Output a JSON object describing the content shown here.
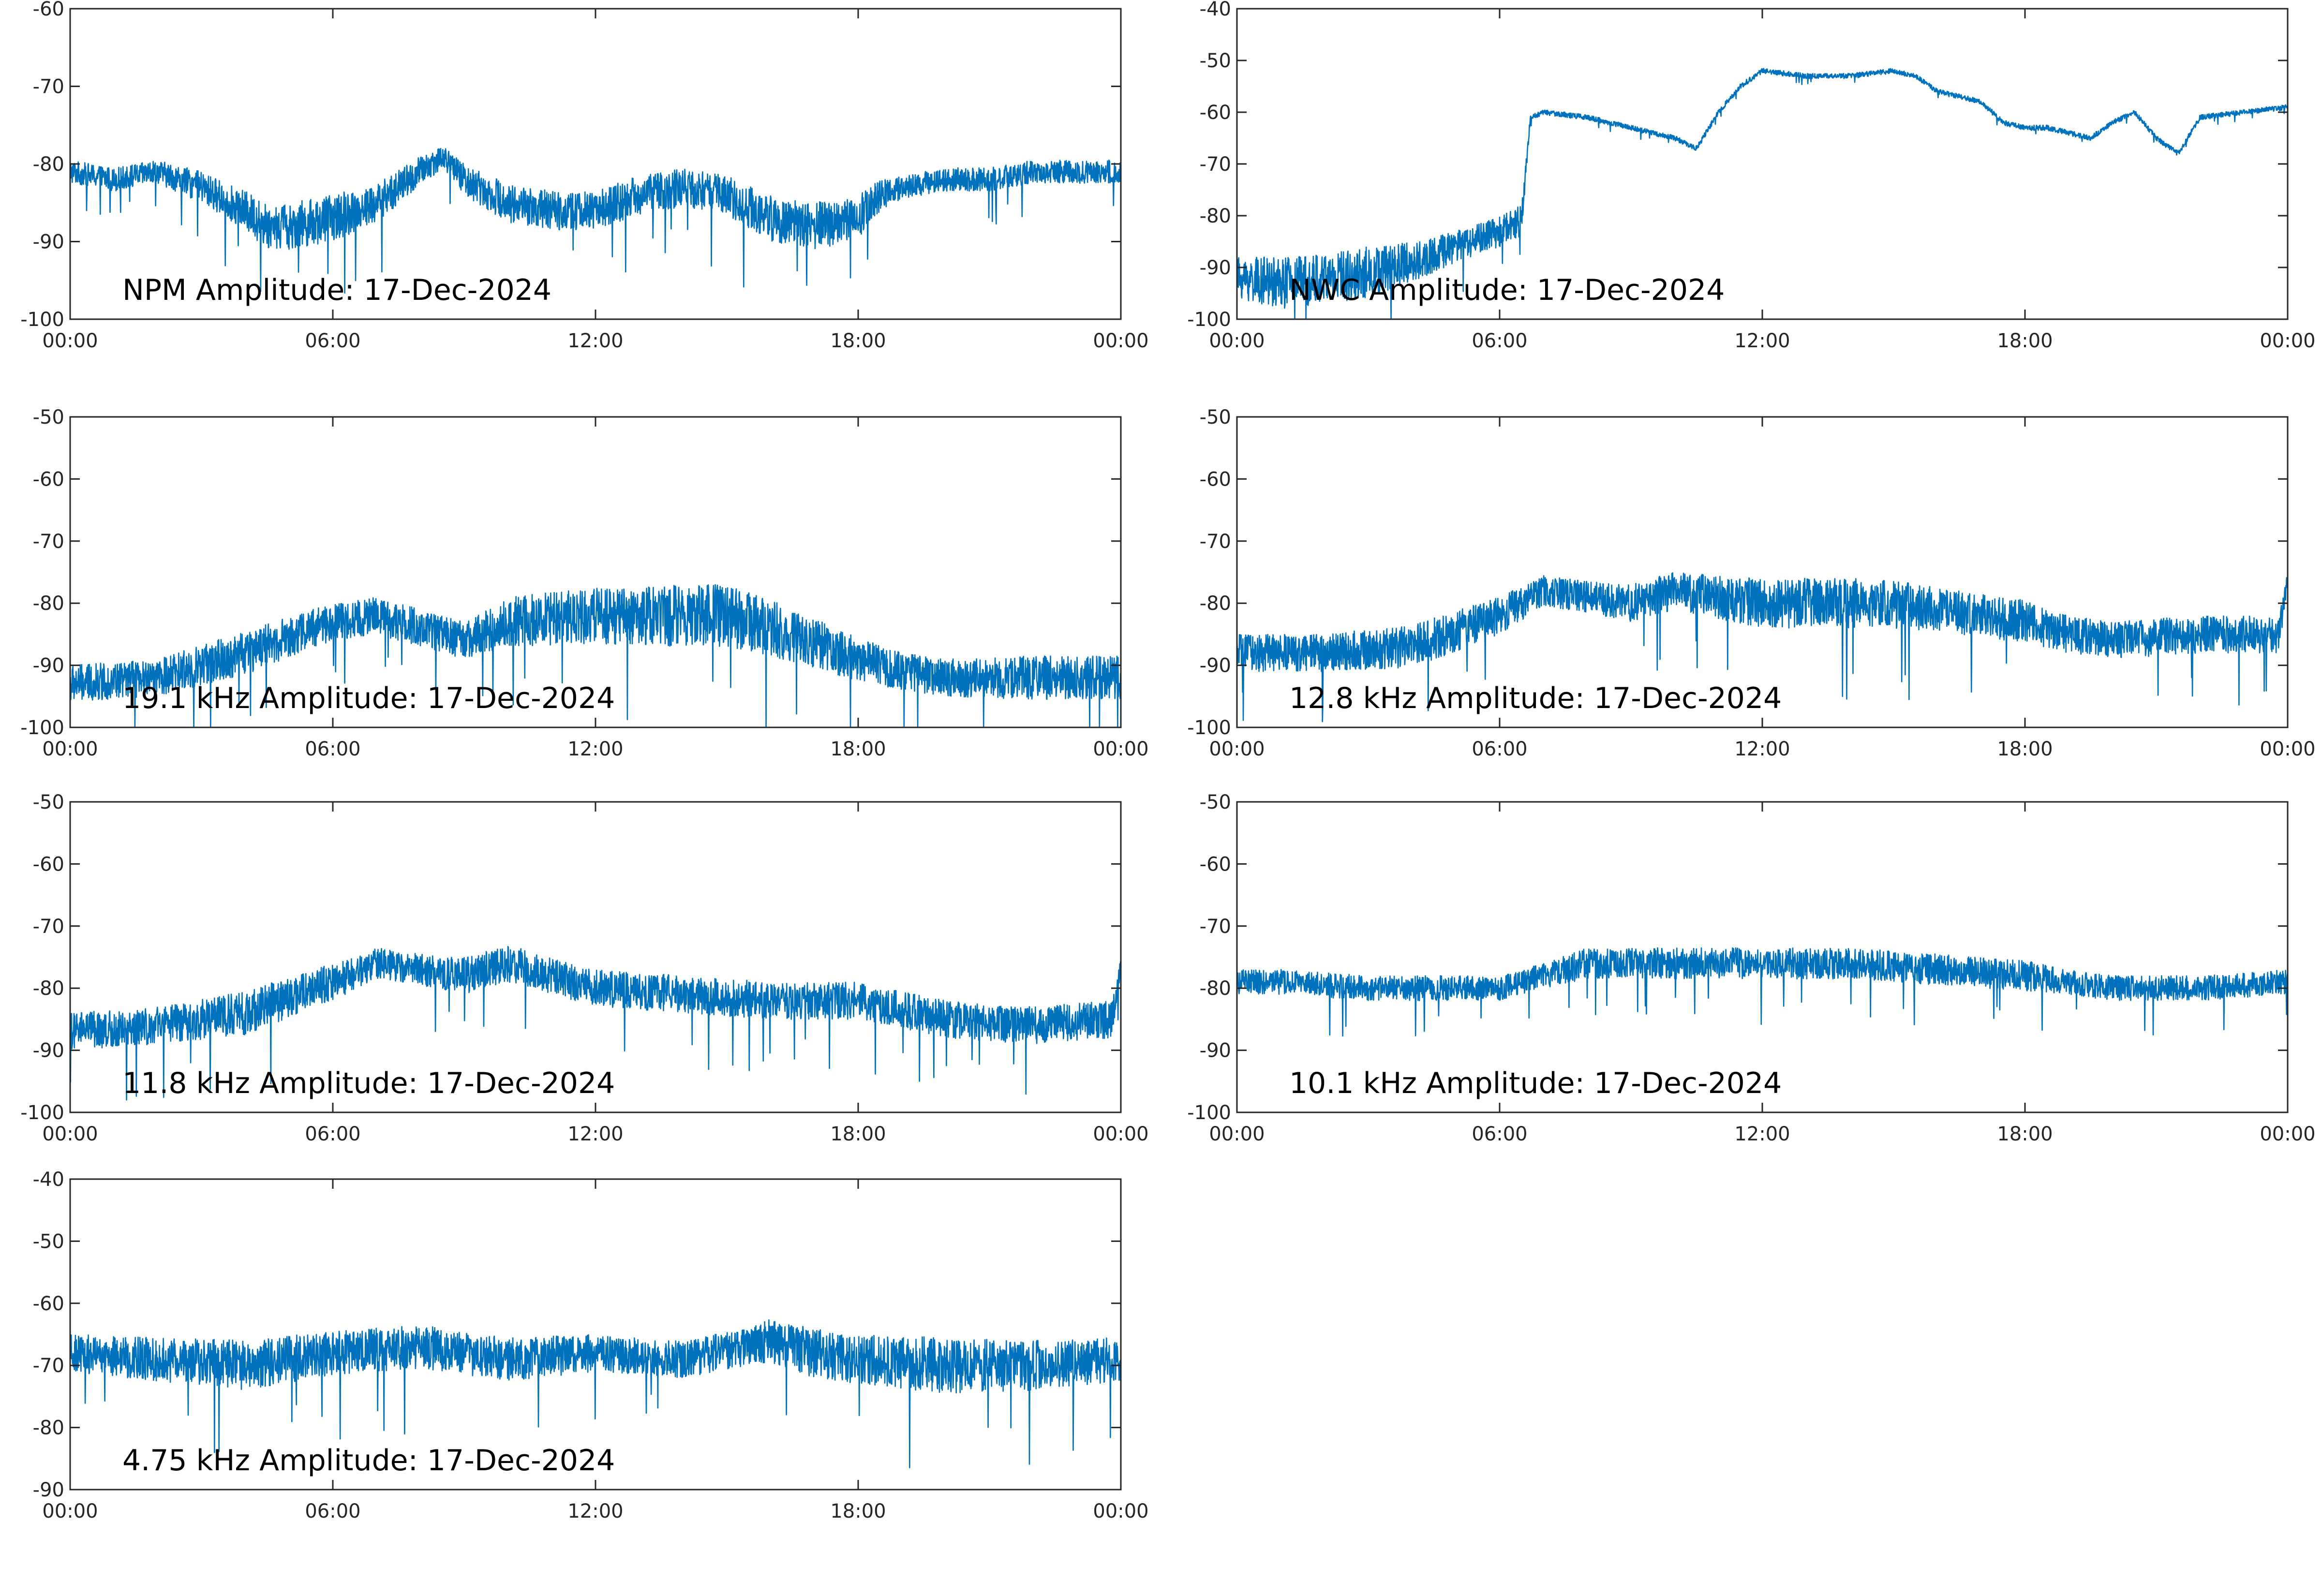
{
  "chart_data": [
    {
      "type": "line",
      "title": "NPM Amplitude: 17-Dec-2024",
      "xticks": [
        "00:00",
        "06:00",
        "12:00",
        "18:00",
        "00:00"
      ],
      "xlim": [
        0,
        24
      ],
      "ylim": [
        -100,
        -60
      ],
      "yticks": [
        -60,
        -70,
        -80,
        -90,
        -100
      ],
      "color": "#0072BD",
      "series": [
        {
          "x": [
            0,
            1,
            2,
            3,
            4,
            4.5,
            5,
            6,
            7,
            8,
            8.5,
            9,
            10,
            11,
            12,
            13,
            14,
            15,
            16,
            17,
            18,
            18.5,
            19,
            20,
            21,
            22,
            23,
            24
          ],
          "y": [
            -81,
            -82,
            -81,
            -83,
            -86,
            -88,
            -88,
            -87,
            -85,
            -81,
            -79,
            -82,
            -85,
            -86,
            -86,
            -84,
            -83,
            -84,
            -87,
            -88,
            -87,
            -84,
            -83,
            -82,
            -82,
            -81,
            -81,
            -81
          ],
          "spread": [
            1.5,
            1.5,
            1.5,
            2,
            2.5,
            3,
            3,
            3,
            2.5,
            2,
            1.5,
            2,
            2.5,
            2.5,
            2.5,
            2.5,
            2.5,
            2.5,
            3,
            3,
            3,
            2,
            1.5,
            1.5,
            1.5,
            1.5,
            1.5,
            1.5
          ]
        }
      ]
    },
    {
      "type": "line",
      "title": "NWC Amplitude: 17-Dec-2024",
      "xticks": [
        "00:00",
        "06:00",
        "12:00",
        "18:00",
        "00:00"
      ],
      "xlim": [
        0,
        24
      ],
      "ylim": [
        -100,
        -40
      ],
      "yticks": [
        -40,
        -50,
        -60,
        -70,
        -80,
        -90,
        -100
      ],
      "color": "#0072BD",
      "series": [
        {
          "x": [
            0,
            1,
            2,
            3,
            4,
            5,
            6,
            6.5,
            6.7,
            7,
            8,
            9,
            10,
            10.5,
            11,
            11.5,
            12,
            13,
            14,
            15,
            15.5,
            16,
            17,
            17.5,
            18,
            18.5,
            19,
            19.5,
            20,
            20.5,
            21,
            21.5,
            22,
            23,
            24
          ],
          "y": [
            -92,
            -93,
            -92,
            -91,
            -89,
            -86,
            -83,
            -81,
            -61,
            -60,
            -61,
            -63,
            -65,
            -67,
            -60,
            -55,
            -52,
            -53,
            -53,
            -52,
            -53,
            -56,
            -58,
            -62,
            -63,
            -63,
            -64,
            -65,
            -62,
            -60,
            -65,
            -68,
            -61,
            -60,
            -59
          ],
          "spread": [
            4,
            5,
            5,
            5,
            4,
            3,
            3,
            3,
            0.5,
            0.5,
            0.5,
            0.5,
            0.5,
            0.5,
            0.5,
            0.5,
            0.5,
            0.5,
            0.5,
            0.5,
            0.5,
            0.5,
            0.5,
            0.5,
            0.5,
            0.5,
            0.5,
            0.5,
            0.5,
            0.5,
            0.5,
            0.5,
            0.5,
            0.5,
            0.5
          ]
        }
      ]
    },
    {
      "type": "line",
      "title": "19.1 kHz Amplitude: 17-Dec-2024",
      "xticks": [
        "00:00",
        "06:00",
        "12:00",
        "18:00",
        "00:00"
      ],
      "xlim": [
        0,
        24
      ],
      "ylim": [
        -100,
        -50
      ],
      "yticks": [
        -50,
        -60,
        -70,
        -80,
        -90,
        -100
      ],
      "color": "#0072BD",
      "series": [
        {
          "x": [
            0,
            2,
            4,
            6,
            7,
            8,
            9,
            10,
            12,
            14,
            15,
            16,
            18,
            19,
            20,
            22,
            24
          ],
          "y": [
            -93,
            -92,
            -88,
            -83,
            -82,
            -84,
            -86,
            -83,
            -82,
            -82,
            -82,
            -84,
            -89,
            -91,
            -92,
            -92,
            -92
          ],
          "spread": [
            3,
            3,
            3.5,
            3,
            3,
            3,
            3,
            4,
            4.5,
            5,
            5,
            4.5,
            3.5,
            3,
            3,
            3.5,
            3.5
          ]
        }
      ]
    },
    {
      "type": "line",
      "title": "12.8 kHz Amplitude: 17-Dec-2024",
      "xticks": [
        "00:00",
        "06:00",
        "12:00",
        "18:00",
        "00:00"
      ],
      "xlim": [
        0,
        24
      ],
      "ylim": [
        -100,
        -50
      ],
      "yticks": [
        -50,
        -60,
        -70,
        -80,
        -90,
        -100
      ],
      "color": "#0072BD",
      "series": [
        {
          "x": [
            0,
            2,
            4,
            6,
            7,
            8,
            9,
            10,
            12,
            14,
            15,
            16,
            18,
            19,
            20,
            22,
            23.8,
            24
          ],
          "y": [
            -88,
            -88,
            -87,
            -82,
            -78,
            -79,
            -80,
            -78,
            -80,
            -80,
            -80,
            -81,
            -83,
            -85,
            -86,
            -85,
            -85,
            -76
          ],
          "spread": [
            3,
            3,
            3.5,
            3,
            2.5,
            2.5,
            3,
            3,
            4,
            4,
            4,
            3.5,
            3.5,
            3,
            3,
            3,
            3,
            1
          ]
        }
      ]
    },
    {
      "type": "line",
      "title": "11.8 kHz Amplitude: 17-Dec-2024",
      "xticks": [
        "00:00",
        "06:00",
        "12:00",
        "18:00",
        "00:00"
      ],
      "xlim": [
        0,
        24
      ],
      "ylim": [
        -100,
        -50
      ],
      "yticks": [
        -50,
        -60,
        -70,
        -80,
        -90,
        -100
      ],
      "color": "#0072BD",
      "series": [
        {
          "x": [
            0,
            2,
            4,
            6,
            7,
            8,
            9,
            10,
            12,
            14,
            16,
            18,
            20,
            22,
            23.8,
            24
          ],
          "y": [
            -87,
            -86,
            -84,
            -79,
            -76,
            -77,
            -78,
            -76,
            -80,
            -81,
            -82,
            -82,
            -85,
            -86,
            -85,
            -76
          ],
          "spread": [
            3,
            3,
            3.5,
            3,
            2.5,
            2.5,
            3,
            3,
            3,
            3,
            3,
            3,
            3,
            3,
            3,
            1
          ]
        }
      ]
    },
    {
      "type": "line",
      "title": "10.1 kHz Amplitude: 17-Dec-2024",
      "xticks": [
        "00:00",
        "06:00",
        "12:00",
        "18:00",
        "00:00"
      ],
      "xlim": [
        0,
        24
      ],
      "ylim": [
        -100,
        -50
      ],
      "yticks": [
        -50,
        -60,
        -70,
        -80,
        -90,
        -100
      ],
      "color": "#0072BD",
      "series": [
        {
          "x": [
            0,
            1,
            3,
            4,
            6,
            7,
            8,
            10,
            12,
            14,
            16,
            18,
            19,
            20,
            22,
            24
          ],
          "y": [
            -79,
            -79,
            -80,
            -80,
            -80,
            -78,
            -76,
            -76,
            -76,
            -76,
            -77,
            -78,
            -79,
            -80,
            -80,
            -79
          ],
          "spread": [
            2,
            2,
            2,
            2,
            2,
            2,
            2.5,
            2.5,
            2.5,
            2.5,
            2.5,
            2.5,
            2,
            2,
            2,
            2
          ]
        }
      ]
    },
    {
      "type": "line",
      "title": "4.75 kHz Amplitude: 17-Dec-2024",
      "xticks": [
        "00:00",
        "06:00",
        "12:00",
        "18:00",
        "00:00"
      ],
      "xlim": [
        0,
        24
      ],
      "ylim": [
        -90,
        -40
      ],
      "yticks": [
        -40,
        -50,
        -60,
        -70,
        -80,
        -90
      ],
      "color": "#0072BD",
      "series": [
        {
          "x": [
            0,
            2,
            4,
            6,
            8,
            10,
            12,
            14,
            15.5,
            16,
            17,
            18,
            20,
            22,
            24
          ],
          "y": [
            -68,
            -69,
            -70,
            -68,
            -67,
            -69,
            -68,
            -69,
            -67,
            -66,
            -68,
            -69,
            -70,
            -70,
            -69
          ],
          "spread": [
            3,
            3.5,
            4,
            3.5,
            3.5,
            3.5,
            3,
            3,
            3,
            3.5,
            4,
            4,
            4.5,
            4,
            3.5
          ]
        }
      ]
    }
  ]
}
